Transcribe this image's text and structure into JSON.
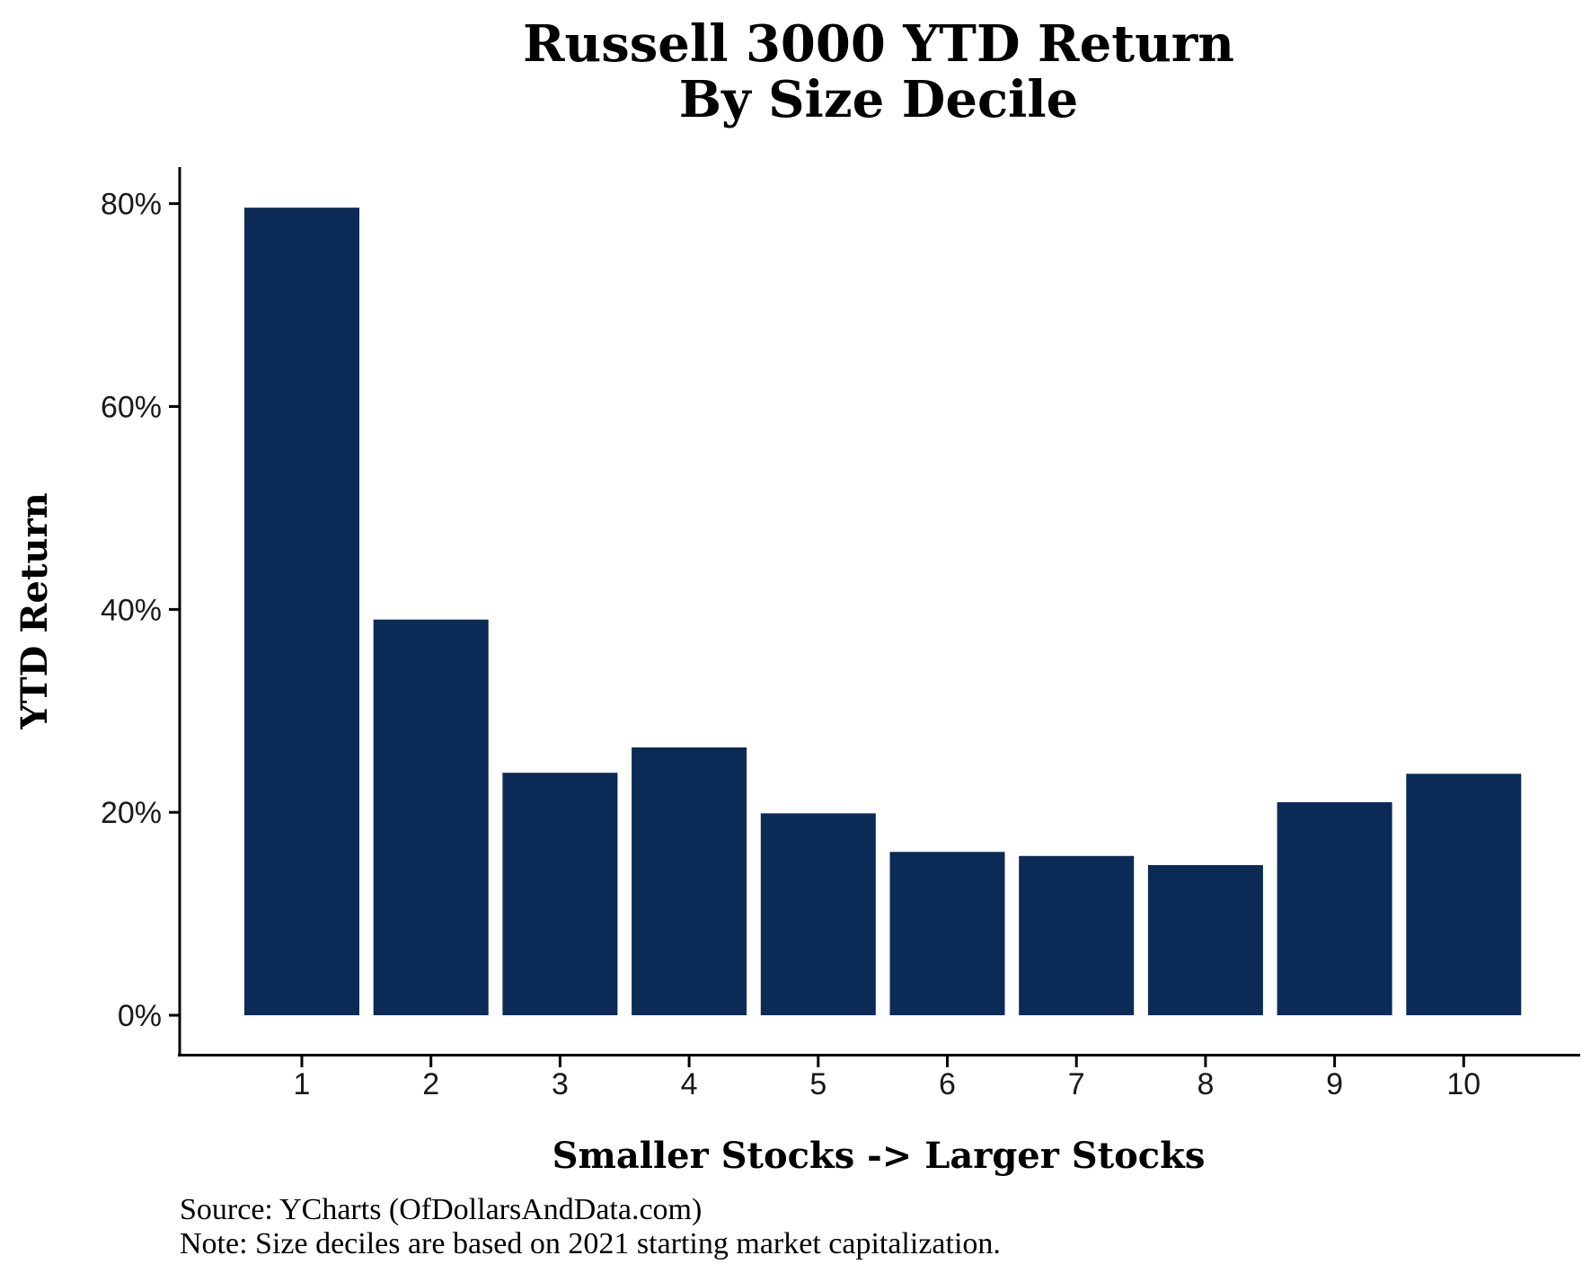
{
  "chart_data": {
    "type": "bar",
    "title": [
      "Russell 3000 YTD Return",
      "By Size Decile"
    ],
    "xlabel": "Smaller Stocks -> Larger Stocks",
    "ylabel": "YTD Return",
    "categories": [
      "1",
      "2",
      "3",
      "4",
      "5",
      "6",
      "7",
      "8",
      "9",
      "10"
    ],
    "values": [
      79.6,
      39.0,
      23.9,
      26.4,
      19.9,
      16.1,
      15.7,
      14.8,
      21.0,
      23.8
    ],
    "ylim": [
      -3.8,
      83.6
    ],
    "yticks": [
      0,
      20,
      40,
      60,
      80
    ],
    "ytick_labels": [
      "0%",
      "20%",
      "40%",
      "60%",
      "80%"
    ],
    "grid": false,
    "legend": "none",
    "bar_color": "#0b2a55",
    "notes": [
      "Source: YCharts (OfDollarsAndData.com)",
      "Note: Size deciles are based on 2021 starting market capitalization."
    ]
  }
}
